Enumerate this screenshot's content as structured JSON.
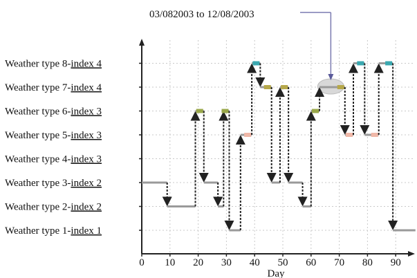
{
  "chart_data": {
    "type": "line",
    "annotation": "03/082003 to 12/08/2003",
    "xlabel": "Day",
    "xlim": [
      0,
      97
    ],
    "x_ticks": [
      0,
      10,
      20,
      30,
      40,
      50,
      60,
      70,
      80,
      90
    ],
    "grid": true,
    "y_levels": [
      {
        "prefix": "Weather type 1-",
        "index": "index 1"
      },
      {
        "prefix": "Weather type 2-",
        "index": "index 2"
      },
      {
        "prefix": "Weather type 3-",
        "index": "index 2"
      },
      {
        "prefix": "Weather type 4-",
        "index": "index 3"
      },
      {
        "prefix": "Weather type 5-",
        "index": "index 3"
      },
      {
        "prefix": "Weather type 6-",
        "index": "index 3"
      },
      {
        "prefix": "Weather type 7-",
        "index": "index 4"
      },
      {
        "prefix": "Weather type 8-",
        "index": "index 4"
      }
    ],
    "segments": [
      {
        "x": [
          0,
          9
        ],
        "type": 3
      },
      {
        "x": [
          9,
          19
        ],
        "type": 2
      },
      {
        "x": [
          19,
          22
        ],
        "type": 6
      },
      {
        "x": [
          22,
          27
        ],
        "type": 3
      },
      {
        "x": [
          27,
          29
        ],
        "type": 2
      },
      {
        "x": [
          29,
          31
        ],
        "type": 6
      },
      {
        "x": [
          31,
          35
        ],
        "type": 1
      },
      {
        "x": [
          35,
          39
        ],
        "type": 5
      },
      {
        "x": [
          39,
          42
        ],
        "type": 8
      },
      {
        "x": [
          42,
          46
        ],
        "type": 7
      },
      {
        "x": [
          46,
          49
        ],
        "type": 3
      },
      {
        "x": [
          49,
          52
        ],
        "type": 7
      },
      {
        "x": [
          52,
          57
        ],
        "type": 3
      },
      {
        "x": [
          57,
          60
        ],
        "type": 2
      },
      {
        "x": [
          60,
          63
        ],
        "type": 6
      },
      {
        "x": [
          63,
          72
        ],
        "type": 7
      },
      {
        "x": [
          72,
          75
        ],
        "type": 5
      },
      {
        "x": [
          75,
          79
        ],
        "type": 8
      },
      {
        "x": [
          79,
          84
        ],
        "type": 5
      },
      {
        "x": [
          84,
          89
        ],
        "type": 8
      },
      {
        "x": [
          89,
          97
        ],
        "type": 1
      }
    ],
    "highlight": {
      "x": 67,
      "type": 7
    },
    "colors": {
      "series": "#9a9a9a",
      "transition": "#222222",
      "grid": "#c8c8c8",
      "highlight": "#d8d8d8",
      "type_marks": {
        "1": "#d9d9d9",
        "2": "#bfbfbf",
        "3": "#a0a0a0",
        "5": "#f0b8a8",
        "6": "#9aa84a",
        "7": "#b6a84a",
        "8": "#3aa8b0"
      }
    }
  }
}
